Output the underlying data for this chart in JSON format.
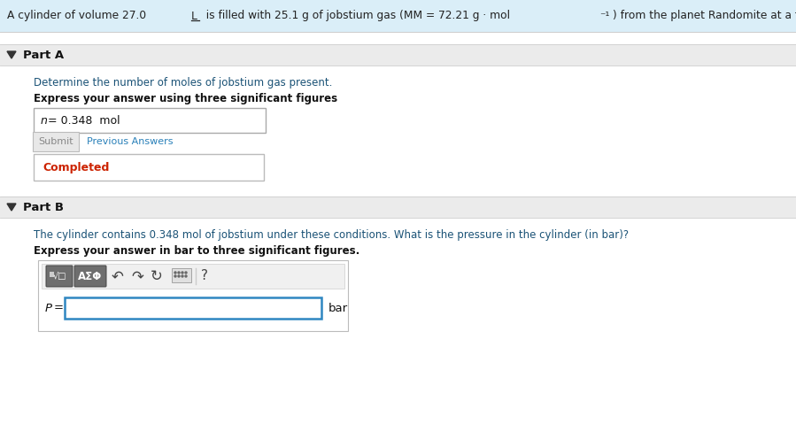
{
  "header_bg": "#daeef8",
  "page_bg": "#f2f2f2",
  "content_bg": "#ffffff",
  "header_fontsize": 8.8,
  "header_color": "#222222",
  "section_bar_bg": "#ebebeb",
  "section_bar_border": "#cccccc",
  "part_a_label": "Part A",
  "part_b_label": "Part B",
  "part_a_question": "Determine the number of moles of jobstium gas present.",
  "part_a_question_color": "#1a5276",
  "part_a_instruction": "Express your answer using three significant figures",
  "part_a_answer": "n = 0.348  mol",
  "part_a_submit": "Submit",
  "part_a_prev": "Previous Answers",
  "part_a_prev_color": "#2980b9",
  "part_a_completed": "Completed",
  "part_a_completed_color": "#cc2200",
  "part_b_question_prefix": "The cylinder contains 0.348 mol of jobstium under these conditions. What is the pressure in the cylinder (in bar)?",
  "part_b_question_color": "#1a5276",
  "part_b_instruction": "Express your answer in bar to three significant figures.",
  "part_b_p_label": "P =",
  "part_b_unit": "bar",
  "box_border": "#aaaaaa",
  "input_border_b": "#2e86c1",
  "toolbar_btn_bg": "#777777",
  "toolbar_btn_border": "#555555",
  "arrow_color": "#444444",
  "label_bold_color": "#111111"
}
